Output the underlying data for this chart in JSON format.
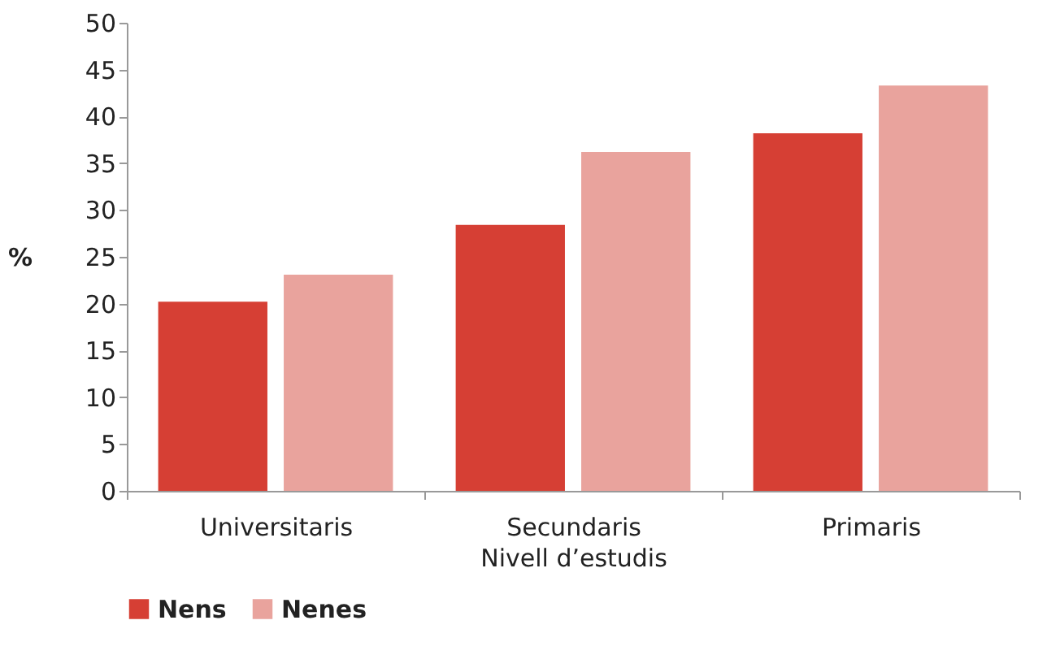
{
  "chart_data": {
    "type": "bar",
    "xlabel": "Nivell d’estudis",
    "ylabel": "%",
    "categories": [
      "Universitaris",
      "Secundaris",
      "Primaris"
    ],
    "series": [
      {
        "name": "Nens",
        "color": "#d63f34",
        "values": [
          20.2,
          28.4,
          38.2
        ]
      },
      {
        "name": "Nenes",
        "color": "#e9a39d",
        "values": [
          23.1,
          36.2,
          43.3
        ]
      }
    ],
    "ylim": [
      0,
      50
    ],
    "yticks": [
      0,
      5,
      10,
      15,
      20,
      25,
      30,
      35,
      40,
      45,
      50
    ],
    "grid": false,
    "legend": "bottom"
  }
}
